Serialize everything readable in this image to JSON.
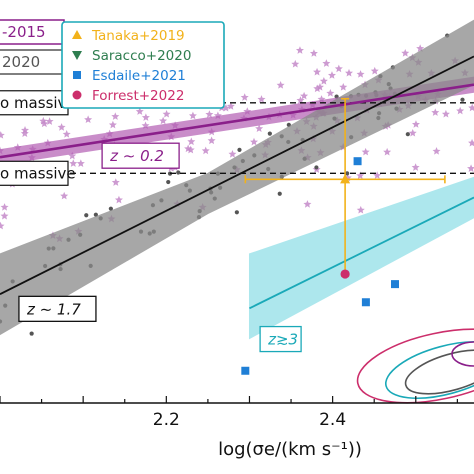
{
  "chart_data": {
    "type": "scatter",
    "xlabel": "log(σe/(km s⁻¹))",
    "xlim": [
      2.0,
      2.57
    ],
    "ylim": [
      0.0,
      1.0
    ],
    "x_ticks": [
      "2.2",
      "2.4"
    ],
    "x_tick_values": [
      2.2,
      2.4
    ],
    "grid": false,
    "legend_left": [
      "-2015",
      "2020"
    ],
    "legend_left_colors": [
      "#8a1f8a",
      "#555555"
    ],
    "legend_right": {
      "placement": "top",
      "entries": [
        {
          "label": "Tanaka+2019",
          "color": "#f2b21b",
          "marker": "triangle-up"
        },
        {
          "label": "Saracco+2020",
          "color": "#2e7d4f",
          "marker": "triangle-down"
        },
        {
          "label": "Esdaile+2021",
          "color": "#1f7fd6",
          "marker": "square"
        },
        {
          "label": "Forrest+2022",
          "color": "#cc2e6b",
          "marker": "circle"
        }
      ]
    },
    "hlines": [
      {
        "y": 0.745,
        "label": "o massive"
      },
      {
        "y": 0.57,
        "label": "o massive"
      }
    ],
    "annotations": [
      {
        "text": "z ∼ 0.2",
        "x": 2.13,
        "y": 0.6,
        "color": "#8a1f8a"
      },
      {
        "text": "z ∼ 1.7",
        "x": 2.03,
        "y": 0.22,
        "color": "#111111"
      },
      {
        "text": "z≳3",
        "x": 2.32,
        "y": 0.145,
        "color": "#1aa9b8"
      }
    ],
    "fits": [
      {
        "name": "z ∼ 0.2",
        "color": "#8a1f8a",
        "band_color": "#b25cb2",
        "x": [
          2.0,
          2.57
        ],
        "y": [
          0.61,
          0.79
        ],
        "band_halfwidth": 0.02
      },
      {
        "name": "z ∼ 1.7",
        "color": "#111111",
        "band_color": "#8a8a8a",
        "x": [
          2.0,
          2.57
        ],
        "y": [
          0.27,
          0.86
        ],
        "band": [
          [
            2.0,
            0.17,
            0.37
          ],
          [
            2.25,
            0.47,
            0.57
          ],
          [
            2.57,
            0.79,
            0.95
          ]
        ]
      },
      {
        "name": "z≳3",
        "color": "#1aa9b8",
        "band_color": "#9fe3ea",
        "x": [
          2.3,
          2.57
        ],
        "y": [
          0.235,
          0.51
        ],
        "band": [
          [
            2.3,
            0.16,
            0.37
          ],
          [
            2.57,
            0.46,
            0.56
          ]
        ]
      }
    ],
    "series": [
      {
        "name": "Tanaka+2019",
        "marker": "triangle-up",
        "color": "#f2b21b",
        "points": [
          {
            "x": 2.415,
            "y": 0.555,
            "xerr": [
              0.12,
              0.12
            ],
            "yerr": [
              0.24,
              0.2
            ]
          }
        ]
      },
      {
        "name": "Esdaile+2021",
        "marker": "square",
        "color": "#1f7fd6",
        "points": [
          {
            "x": 2.43,
            "y": 0.6
          },
          {
            "x": 2.44,
            "y": 0.25
          },
          {
            "x": 2.475,
            "y": 0.295
          },
          {
            "x": 2.295,
            "y": 0.08
          }
        ]
      },
      {
        "name": "Forrest+2022",
        "marker": "circle",
        "color": "#cc2e6b",
        "points": [
          {
            "x": 2.415,
            "y": 0.32
          }
        ]
      }
    ],
    "background_stars": {
      "color": "#c48ac9",
      "count": 160
    },
    "background_dots": {
      "color": "#555555",
      "count": 70
    },
    "contours": {
      "colors": [
        "#cc2e6b",
        "#1aa9b8",
        "#555555",
        "#8a1f8a"
      ]
    }
  }
}
